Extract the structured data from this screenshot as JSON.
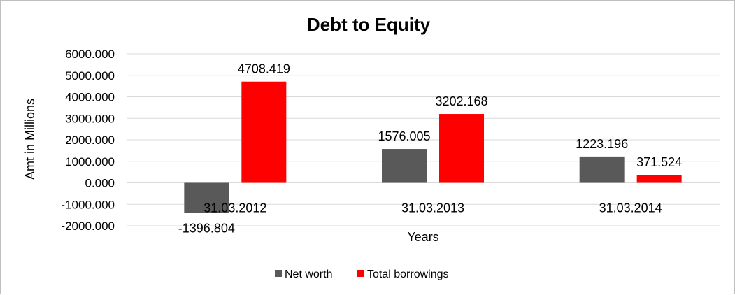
{
  "chart_data": {
    "type": "bar",
    "title": "Debt to Equity",
    "xlabel": "Years",
    "ylabel": "Amt in Millions",
    "categories": [
      "31.03.2012",
      "31.03.2013",
      "31.03.2014"
    ],
    "series": [
      {
        "name": "Net worth",
        "color": "#595959",
        "values": [
          -1396.804,
          1576.005,
          1223.196
        ]
      },
      {
        "name": "Total borrowings",
        "color": "#ff0000",
        "values": [
          4708.419,
          3202.168,
          371.524
        ]
      }
    ],
    "data_labels": [
      [
        "-1396.804",
        "1576.005",
        "1223.196"
      ],
      [
        "4708.419",
        "3202.168",
        "371.524"
      ]
    ],
    "yticks": [
      6000,
      5000,
      4000,
      3000,
      2000,
      1000,
      0,
      -1000,
      -2000
    ],
    "ytick_labels": [
      "6000.000",
      "5000.000",
      "4000.000",
      "3000.000",
      "2000.000",
      "1000.000",
      "0.000",
      "-1000.000",
      "-2000.000"
    ],
    "ylim": [
      -2000,
      6000
    ],
    "grid": true,
    "legend_position": "bottom"
  }
}
